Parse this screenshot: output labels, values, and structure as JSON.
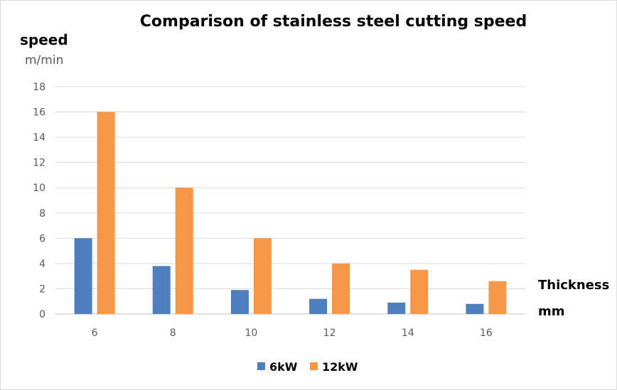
{
  "chart_data": {
    "type": "bar",
    "title": "Comparison of stainless steel cutting speed",
    "ylabel": "speed",
    "yunit": "m/min",
    "xlabel": "Thickness",
    "xunit": "mm",
    "categories": [
      "6",
      "8",
      "10",
      "12",
      "14",
      "16"
    ],
    "series": [
      {
        "name": "6kW",
        "color": "#4e7ebd",
        "values": [
          6,
          3.8,
          1.9,
          1.2,
          0.9,
          0.8
        ]
      },
      {
        "name": "12kW",
        "color": "#f79646",
        "values": [
          16,
          10,
          6,
          4,
          3.5,
          2.6
        ]
      }
    ],
    "ylim": [
      0,
      18
    ],
    "yticks": [
      "0",
      "2",
      "4",
      "6",
      "8",
      "10",
      "12",
      "14",
      "16",
      "18"
    ],
    "grid": true,
    "legend_position": "bottom"
  }
}
